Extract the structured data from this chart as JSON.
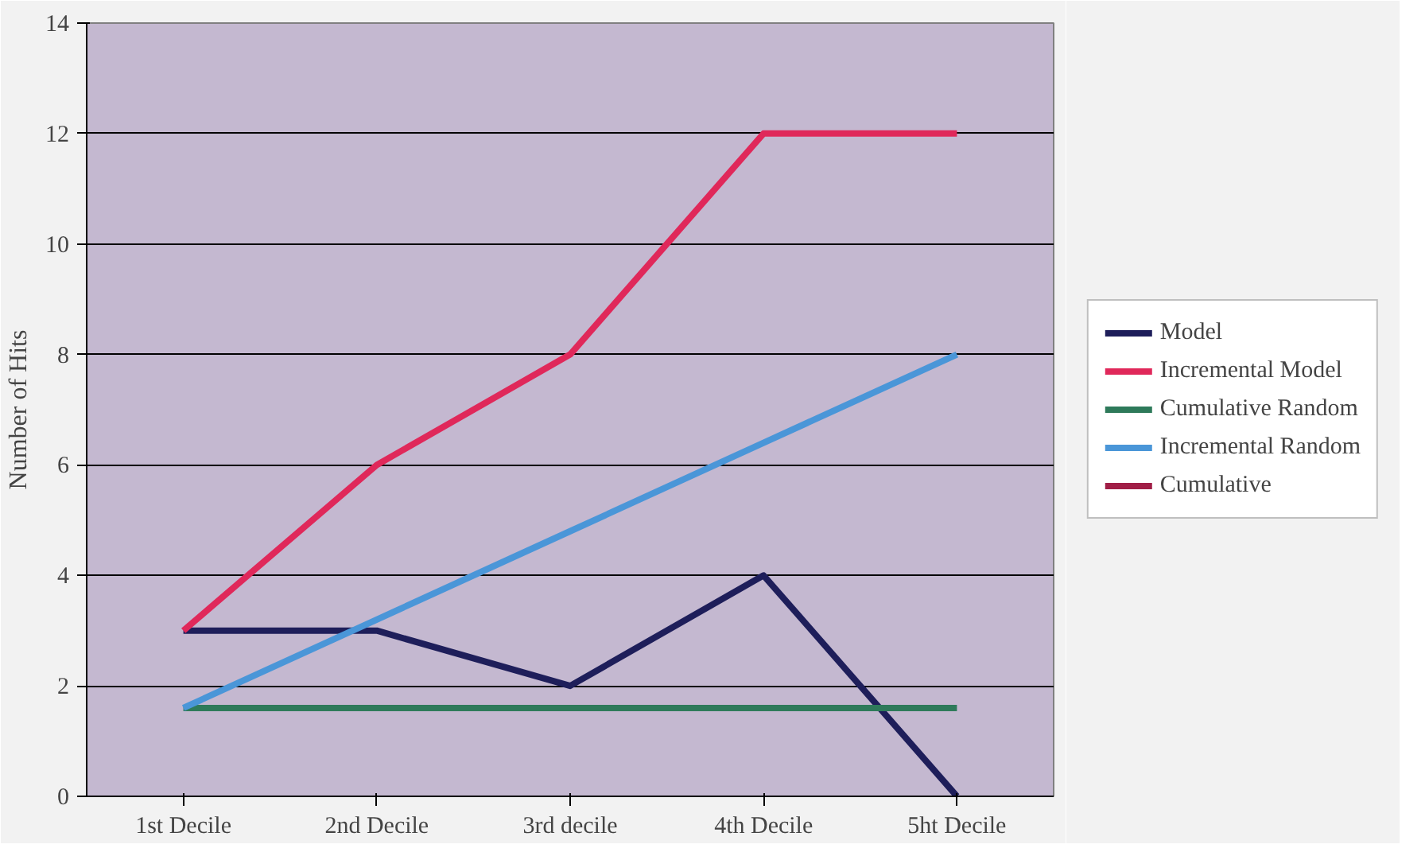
{
  "chart_data": {
    "type": "line",
    "ylabel": "Number of Hits",
    "categories": [
      "1st Decile",
      "2nd Decile",
      "3rd decile",
      "4th Decile",
      "5ht Decile"
    ],
    "series": [
      {
        "name": "Model",
        "color": "#1e1e5a",
        "values": [
          3,
          3,
          2,
          4,
          0
        ]
      },
      {
        "name": "Incremental Model",
        "color": "#e0285a",
        "values": [
          3,
          6,
          8,
          12,
          12
        ]
      },
      {
        "name": "Cumulative Random",
        "color": "#2e7a5a",
        "values": [
          1.6,
          1.6,
          1.6,
          1.6,
          1.6
        ]
      },
      {
        "name": "Incremental Random",
        "color": "#4a96d8",
        "values": [
          1.6,
          3.2,
          4.8,
          6.4,
          8
        ]
      },
      {
        "name": "Cumulative",
        "color": "#a01e46",
        "values": [
          null,
          null,
          null,
          null,
          null
        ]
      }
    ],
    "ylim": [
      0,
      14
    ],
    "yticks": [
      0,
      2,
      4,
      6,
      8,
      10,
      12,
      14
    ],
    "grid": "y",
    "legend": "right",
    "marker": "none",
    "line_style": "solid"
  }
}
